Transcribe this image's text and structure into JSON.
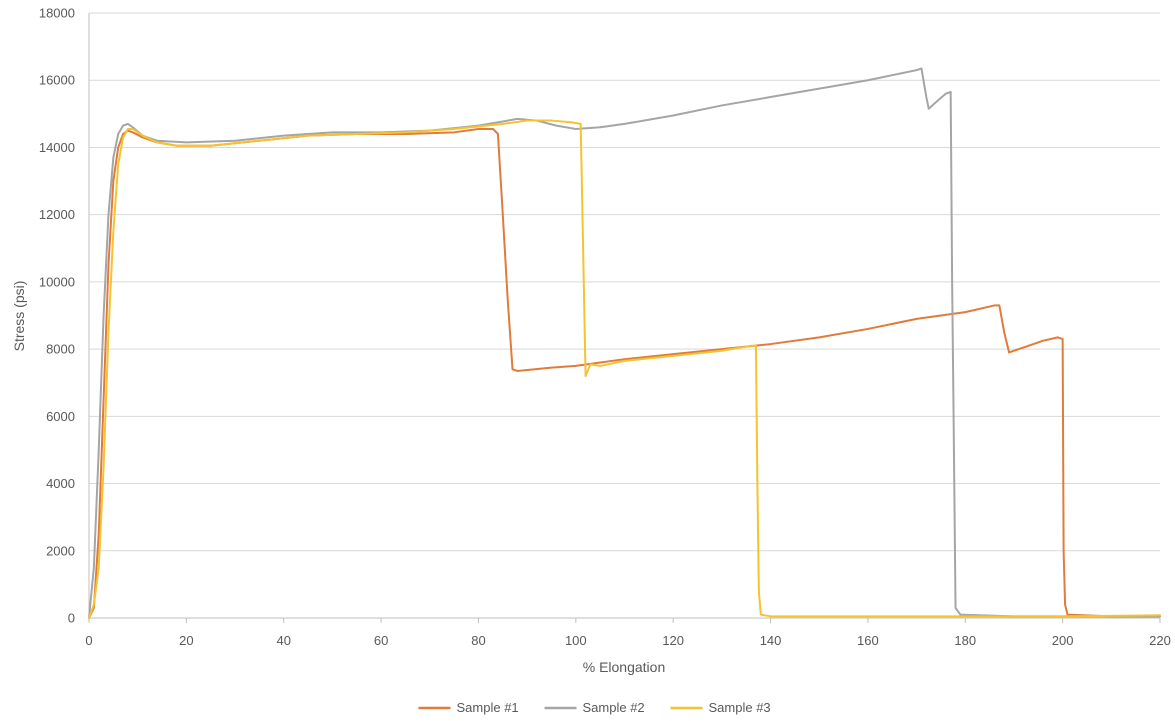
{
  "chart_data": {
    "type": "line",
    "title": "",
    "xlabel": "% Elongation",
    "ylabel": "Stress (psi)",
    "xlim": [
      0,
      220
    ],
    "ylim": [
      0,
      18000
    ],
    "x_ticks": [
      0,
      20,
      40,
      60,
      80,
      100,
      120,
      140,
      160,
      180,
      200,
      220
    ],
    "y_ticks": [
      0,
      2000,
      4000,
      6000,
      8000,
      10000,
      12000,
      14000,
      16000,
      18000
    ],
    "grid": "horizontal",
    "legend_position": "bottom",
    "series": [
      {
        "name": "Sample #1",
        "color": "#e07b39",
        "points": [
          [
            0,
            0
          ],
          [
            1,
            300
          ],
          [
            2,
            2500
          ],
          [
            3,
            6500
          ],
          [
            4,
            10500
          ],
          [
            5,
            13000
          ],
          [
            6,
            14000
          ],
          [
            7,
            14400
          ],
          [
            8,
            14500
          ],
          [
            9,
            14450
          ],
          [
            11,
            14300
          ],
          [
            14,
            14150
          ],
          [
            18,
            14050
          ],
          [
            25,
            14050
          ],
          [
            35,
            14200
          ],
          [
            45,
            14350
          ],
          [
            55,
            14400
          ],
          [
            65,
            14400
          ],
          [
            75,
            14450
          ],
          [
            80,
            14550
          ],
          [
            83,
            14550
          ],
          [
            84,
            14400
          ],
          [
            85,
            12000
          ],
          [
            86,
            9500
          ],
          [
            87,
            7400
          ],
          [
            88,
            7350
          ],
          [
            95,
            7450
          ],
          [
            100,
            7500
          ],
          [
            110,
            7700
          ],
          [
            120,
            7850
          ],
          [
            130,
            8000
          ],
          [
            140,
            8150
          ],
          [
            150,
            8350
          ],
          [
            160,
            8600
          ],
          [
            170,
            8900
          ],
          [
            180,
            9100
          ],
          [
            186,
            9300
          ],
          [
            187,
            9300
          ],
          [
            188,
            8500
          ],
          [
            189,
            7900
          ],
          [
            192,
            8050
          ],
          [
            196,
            8250
          ],
          [
            199,
            8350
          ],
          [
            200,
            8300
          ],
          [
            200.2,
            2000
          ],
          [
            200.5,
            400
          ],
          [
            201,
            100
          ],
          [
            210,
            50
          ],
          [
            220,
            50
          ]
        ]
      },
      {
        "name": "Sample #2",
        "color": "#a5a5a5",
        "points": [
          [
            0,
            0
          ],
          [
            1,
            1500
          ],
          [
            2,
            5000
          ],
          [
            3,
            9000
          ],
          [
            4,
            12000
          ],
          [
            5,
            13700
          ],
          [
            6,
            14400
          ],
          [
            7,
            14650
          ],
          [
            8,
            14700
          ],
          [
            9,
            14600
          ],
          [
            11,
            14350
          ],
          [
            14,
            14200
          ],
          [
            20,
            14150
          ],
          [
            30,
            14200
          ],
          [
            40,
            14350
          ],
          [
            50,
            14450
          ],
          [
            60,
            14450
          ],
          [
            70,
            14500
          ],
          [
            80,
            14650
          ],
          [
            88,
            14850
          ],
          [
            92,
            14800
          ],
          [
            96,
            14650
          ],
          [
            100,
            14550
          ],
          [
            105,
            14600
          ],
          [
            110,
            14700
          ],
          [
            120,
            14950
          ],
          [
            130,
            15250
          ],
          [
            140,
            15500
          ],
          [
            150,
            15750
          ],
          [
            160,
            16000
          ],
          [
            165,
            16150
          ],
          [
            170,
            16300
          ],
          [
            171,
            16350
          ],
          [
            172,
            15500
          ],
          [
            172.5,
            15150
          ],
          [
            174,
            15350
          ],
          [
            176,
            15600
          ],
          [
            177,
            15650
          ],
          [
            177.3,
            10000
          ],
          [
            177.6,
            6000
          ],
          [
            178,
            300
          ],
          [
            179,
            100
          ],
          [
            190,
            50
          ],
          [
            220,
            50
          ]
        ]
      },
      {
        "name": "Sample #3",
        "color": "#f5c231",
        "points": [
          [
            0,
            0
          ],
          [
            1,
            400
          ],
          [
            2,
            1500
          ],
          [
            3,
            4500
          ],
          [
            4,
            8500
          ],
          [
            5,
            11500
          ],
          [
            6,
            13500
          ],
          [
            7,
            14300
          ],
          [
            8,
            14550
          ],
          [
            9,
            14550
          ],
          [
            11,
            14350
          ],
          [
            14,
            14150
          ],
          [
            18,
            14050
          ],
          [
            25,
            14050
          ],
          [
            35,
            14200
          ],
          [
            45,
            14350
          ],
          [
            55,
            14400
          ],
          [
            65,
            14450
          ],
          [
            75,
            14550
          ],
          [
            85,
            14700
          ],
          [
            90,
            14800
          ],
          [
            95,
            14800
          ],
          [
            99,
            14750
          ],
          [
            101,
            14700
          ],
          [
            101.5,
            11000
          ],
          [
            102,
            7200
          ],
          [
            103,
            7550
          ],
          [
            105,
            7500
          ],
          [
            110,
            7650
          ],
          [
            120,
            7800
          ],
          [
            130,
            7950
          ],
          [
            136,
            8100
          ],
          [
            137,
            8100
          ],
          [
            137.3,
            4000
          ],
          [
            137.6,
            800
          ],
          [
            138,
            100
          ],
          [
            140,
            50
          ],
          [
            160,
            50
          ],
          [
            200,
            50
          ],
          [
            220,
            80
          ]
        ]
      }
    ]
  }
}
